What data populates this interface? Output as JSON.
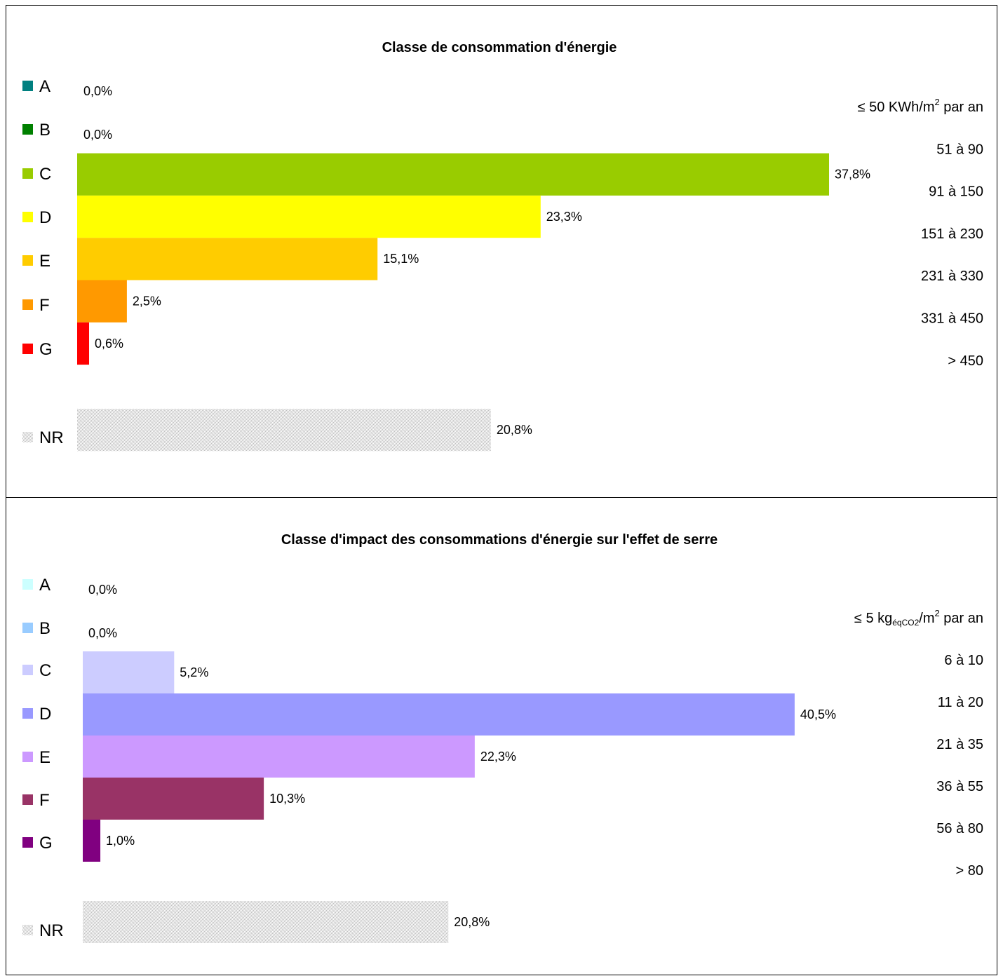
{
  "chart_data": [
    {
      "type": "bar",
      "orientation": "horizontal",
      "title": "Classe de consommation d'énergie",
      "range_unit": {
        "prefix": "≤ 50 KWh/m",
        "sup": "2",
        "suffix": " par an"
      },
      "ranges": [
        "51 à 90",
        "91 à 150",
        "151 à 230",
        "231 à 330",
        "331 à 450",
        "> 450"
      ],
      "xlim": [
        0,
        40
      ],
      "categories": [
        "A",
        "B",
        "C",
        "D",
        "E",
        "F",
        "G",
        "NR"
      ],
      "values": [
        0.0,
        0.0,
        37.8,
        23.3,
        15.1,
        2.5,
        0.6,
        20.8
      ],
      "value_labels": [
        "0,0%",
        "0,0%",
        "37,8%",
        "23,3%",
        "15,1%",
        "2,5%",
        "0,6%",
        "20,8%"
      ],
      "colors": [
        "#008080",
        "#008000",
        "#99cc00",
        "#ffff00",
        "#ffcc00",
        "#ff9900",
        "#ff0000",
        "pattern-grey"
      ],
      "legend": "left"
    },
    {
      "type": "bar",
      "orientation": "horizontal",
      "title": "Classe d'impact des consommations d'énergie sur l'effet de serre",
      "range_unit": {
        "prefix": "≤ 5 kg",
        "sub": "éqCO2",
        "mid": "/m",
        "sup": "2",
        "suffix": " par an"
      },
      "ranges": [
        "6 à 10",
        "11 à 20",
        "21 à 35",
        "36 à 55",
        "56 à 80",
        "> 80"
      ],
      "xlim": [
        0,
        45
      ],
      "categories": [
        "A",
        "B",
        "C",
        "D",
        "E",
        "F",
        "G",
        "NR"
      ],
      "values": [
        0.0,
        0.0,
        5.2,
        40.5,
        22.3,
        10.3,
        1.0,
        20.8
      ],
      "value_labels": [
        "0,0%",
        "0,0%",
        "5,2%",
        "40,5%",
        "22,3%",
        "10,3%",
        "1,0%",
        "20,8%"
      ],
      "colors": [
        "#ccffff",
        "#99ccff",
        "#ccccff",
        "#9999ff",
        "#cc99ff",
        "#993366",
        "#800080",
        "pattern-grey"
      ],
      "legend": "left"
    }
  ]
}
